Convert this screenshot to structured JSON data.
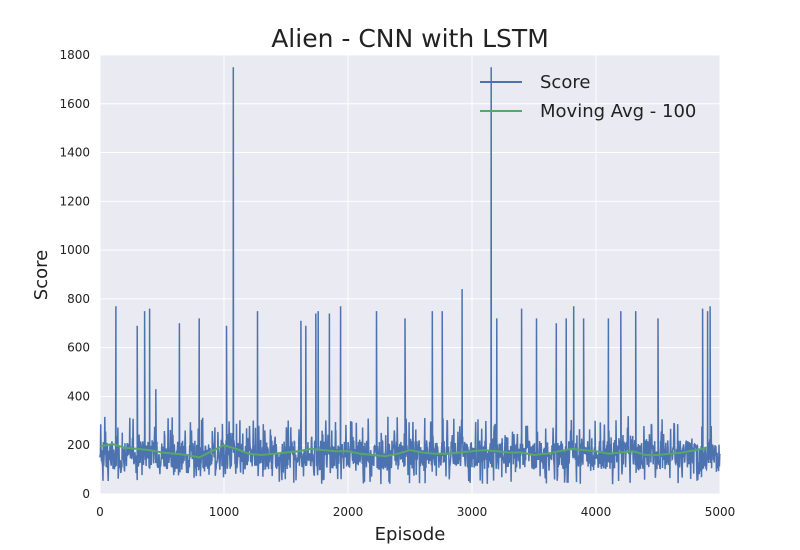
{
  "chart_data": {
    "type": "line",
    "title": "Alien - CNN with LSTM",
    "xlabel": "Episode",
    "ylabel": "Score",
    "xlim": [
      0,
      5000
    ],
    "ylim": [
      0,
      1800
    ],
    "x_ticks": [
      "0",
      "1000",
      "2000",
      "3000",
      "4000",
      "5000"
    ],
    "y_ticks": [
      "0",
      "200",
      "400",
      "600",
      "800",
      "1000",
      "1200",
      "1400",
      "1600",
      "1800"
    ],
    "grid": true,
    "legend_position": "top-right",
    "series": [
      {
        "name": "Score",
        "color": "#4c72b0",
        "points_note_free": true,
        "x": [
          0,
          60,
          120,
          128,
          180,
          300,
          320,
          360,
          400,
          420,
          450,
          520,
          620,
          640,
          690,
          800,
          900,
          1000,
          1020,
          1070,
          1075,
          1080,
          1100,
          1200,
          1270,
          1300,
          1400,
          1500,
          1580,
          1620,
          1660,
          1700,
          1740,
          1760,
          1800,
          1850,
          1900,
          1940,
          1980,
          2000,
          2100,
          2200,
          2230,
          2300,
          2380,
          2460,
          2500,
          2600,
          2680,
          2720,
          2760,
          2800,
          2860,
          2920,
          2940,
          3000,
          3100,
          3155,
          3160,
          3165,
          3200,
          3300,
          3400,
          3480,
          3520,
          3600,
          3680,
          3700,
          3760,
          3820,
          3880,
          3900,
          3960,
          4000,
          4100,
          4160,
          4200,
          4280,
          4320,
          4400,
          4460,
          4500,
          4560,
          4600,
          4700,
          4760,
          4820,
          4860,
          4880,
          4900,
          4920,
          4960,
          5000
        ],
        "y": [
          150,
          200,
          120,
          770,
          180,
          690,
          160,
          750,
          760,
          220,
          430,
          150,
          140,
          700,
          160,
          720,
          150,
          200,
          690,
          250,
          1750,
          220,
          150,
          180,
          750,
          160,
          200,
          170,
          140,
          710,
          690,
          160,
          740,
          750,
          180,
          740,
          160,
          770,
          150,
          180,
          140,
          160,
          750,
          170,
          160,
          720,
          150,
          180,
          750,
          170,
          750,
          160,
          200,
          840,
          160,
          190,
          150,
          1750,
          220,
          160,
          720,
          180,
          760,
          170,
          720,
          160,
          700,
          200,
          720,
          770,
          180,
          720,
          170,
          160,
          720,
          180,
          750,
          160,
          750,
          170,
          160,
          720,
          180,
          160,
          150,
          200,
          170,
          760,
          160,
          750,
          770,
          200,
          160
        ]
      },
      {
        "name": "Moving Avg - 100",
        "color": "#55a868",
        "x": [
          0,
          100,
          200,
          300,
          400,
          500,
          600,
          700,
          800,
          900,
          1000,
          1100,
          1200,
          1300,
          1400,
          1500,
          1600,
          1700,
          1800,
          1900,
          2000,
          2100,
          2200,
          2300,
          2400,
          2500,
          2600,
          2700,
          2800,
          2900,
          3000,
          3100,
          3200,
          3300,
          3400,
          3500,
          3600,
          3700,
          3800,
          3900,
          4000,
          4100,
          4200,
          4300,
          4400,
          4500,
          4600,
          4700,
          4800,
          4900
        ],
        "y": [
          195,
          205,
          190,
          185,
          180,
          170,
          165,
          160,
          150,
          175,
          200,
          185,
          165,
          160,
          165,
          170,
          175,
          185,
          180,
          175,
          175,
          165,
          160,
          155,
          165,
          180,
          170,
          165,
          165,
          170,
          175,
          180,
          175,
          170,
          170,
          160,
          165,
          175,
          185,
          180,
          175,
          165,
          170,
          175,
          160,
          160,
          165,
          170,
          180,
          190
        ]
      }
    ]
  }
}
